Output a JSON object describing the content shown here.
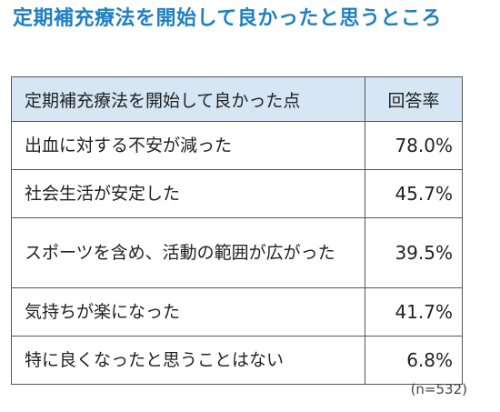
{
  "title": "定期補充療法を開始して良かったと思うところ",
  "table": {
    "header": {
      "item": "定期補充療法を開始して良かった点",
      "rate": "回答率"
    },
    "rows": [
      {
        "item": "出血に対する不安が減った",
        "rate": "78.0%"
      },
      {
        "item": "社会生活が安定した",
        "rate": "45.7%"
      },
      {
        "item": "スポーツを含め、活動の範囲が広がった",
        "rate": "39.5%"
      },
      {
        "item": "気持ちが楽になった",
        "rate": "41.7%"
      },
      {
        "item": "特に良くなったと思うことはない",
        "rate": "6.8%"
      }
    ]
  },
  "note": "(n=532)",
  "colors": {
    "title": "#1f80c4",
    "header_bg": "#d6e6f4",
    "border": "#555555"
  }
}
